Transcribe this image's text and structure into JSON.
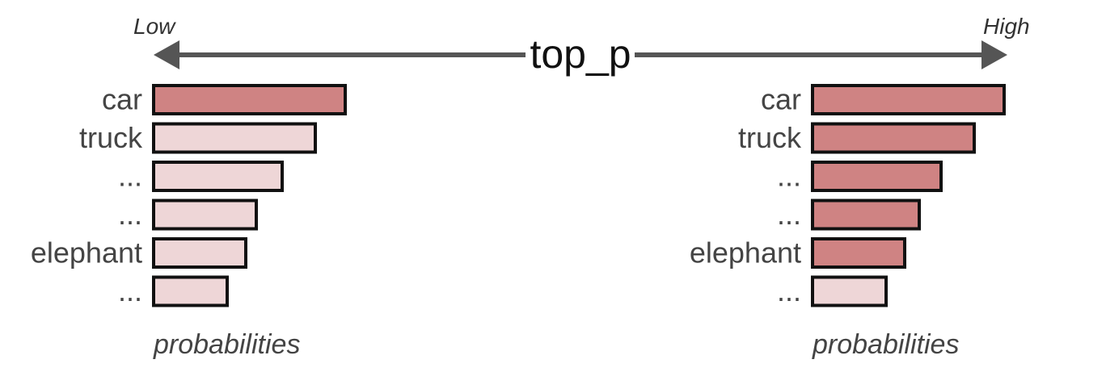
{
  "axis": {
    "title": "top_p",
    "low_label": "Low",
    "high_label": "High"
  },
  "colors": {
    "selected": "#cf8383",
    "unselected": "#eed6d7",
    "stroke": "#111111",
    "arrow": "#555555"
  },
  "panels": [
    {
      "setting": "Low",
      "footer": "probabilities",
      "tokens": [
        {
          "label": "car",
          "probability": 0.52,
          "selected": true
        },
        {
          "label": "truck",
          "probability": 0.44,
          "selected": false
        },
        {
          "label": "...",
          "probability": 0.35,
          "selected": false
        },
        {
          "label": "...",
          "probability": 0.28,
          "selected": false
        },
        {
          "label": "elephant",
          "probability": 0.25,
          "selected": false
        },
        {
          "label": "...",
          "probability": 0.2,
          "selected": false
        }
      ]
    },
    {
      "setting": "High",
      "footer": "probabilities",
      "tokens": [
        {
          "label": "car",
          "probability": 0.52,
          "selected": true
        },
        {
          "label": "truck",
          "probability": 0.44,
          "selected": true
        },
        {
          "label": "...",
          "probability": 0.35,
          "selected": true
        },
        {
          "label": "...",
          "probability": 0.29,
          "selected": true
        },
        {
          "label": "elephant",
          "probability": 0.25,
          "selected": true
        },
        {
          "label": "...",
          "probability": 0.2,
          "selected": false
        }
      ]
    }
  ]
}
